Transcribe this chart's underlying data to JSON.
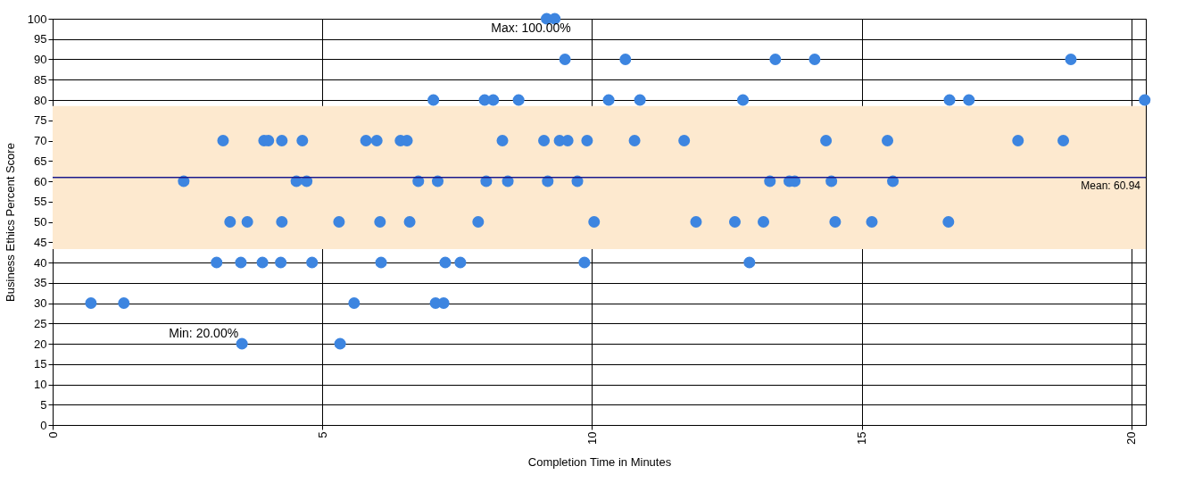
{
  "chart_data": {
    "type": "scatter",
    "xlabel": "Completion Time in Minutes",
    "ylabel": "Business Ethics Percent Score",
    "xlim": [
      0,
      20.27
    ],
    "xticks": [
      0,
      5,
      10,
      15,
      20
    ],
    "ylim": [
      0,
      100
    ],
    "yticks": [
      0,
      5,
      10,
      15,
      20,
      25,
      30,
      35,
      40,
      45,
      50,
      55,
      60,
      65,
      70,
      75,
      80,
      85,
      90,
      95,
      100
    ],
    "grid": true,
    "marker": "circle",
    "series": [
      {
        "color": "#3d85e0",
        "x": [
          0.71,
          1.32,
          3.51,
          5.33,
          3.04,
          3.49,
          3.89,
          4.23,
          4.81,
          6.09,
          7.28,
          7.56,
          9.86,
          12.92,
          5.59,
          7.1,
          7.25,
          3.29,
          3.61,
          4.25,
          5.31,
          6.07,
          6.62,
          7.89,
          10.04,
          11.93,
          12.65,
          13.18,
          14.51,
          15.19,
          16.61,
          2.43,
          4.52,
          4.71,
          6.78,
          7.14,
          8.04,
          8.44,
          9.18,
          9.73,
          13.3,
          13.66,
          13.76,
          14.44,
          15.58,
          3.16,
          3.92,
          4.0,
          4.25,
          4.63,
          5.81,
          6.01,
          6.45,
          6.57,
          8.34,
          9.11,
          9.4,
          9.55,
          9.91,
          10.79,
          11.71,
          14.34,
          15.48,
          17.9,
          18.74,
          7.06,
          8.01,
          8.17,
          8.64,
          10.31,
          10.89,
          12.8,
          16.63,
          16.99,
          20.25,
          9.5,
          10.62,
          13.4,
          14.13,
          18.88,
          9.16,
          9.31
        ],
        "values": [
          30,
          30,
          20,
          20,
          40,
          40,
          40,
          40,
          40,
          40,
          40,
          40,
          40,
          40,
          30,
          30,
          30,
          50,
          50,
          50,
          50,
          50,
          50,
          50,
          50,
          50,
          50,
          50,
          50,
          50,
          50,
          60,
          60,
          60,
          60,
          60,
          60,
          60,
          60,
          60,
          60,
          60,
          60,
          60,
          60,
          70,
          70,
          70,
          70,
          70,
          70,
          70,
          70,
          70,
          70,
          70,
          70,
          70,
          70,
          70,
          70,
          70,
          70,
          70,
          70,
          80,
          80,
          80,
          80,
          80,
          80,
          80,
          80,
          80,
          80,
          90,
          90,
          90,
          90,
          90,
          100,
          100
        ]
      }
    ],
    "ref_lines": [
      {
        "axis": "y",
        "value": 60.94,
        "label": "Mean: 60.94",
        "color": "#1a1a8c",
        "line_style": "solid"
      }
    ],
    "bands": [
      {
        "axis": "y",
        "from": 43.3,
        "to": 78.5,
        "color": "#fde9cf"
      }
    ],
    "annotations": [
      {
        "text": "Max: 100.00%",
        "x": 9.2,
        "y": 100
      },
      {
        "text": "Min: 20.00%",
        "x": 3.51,
        "y": 20
      }
    ]
  }
}
